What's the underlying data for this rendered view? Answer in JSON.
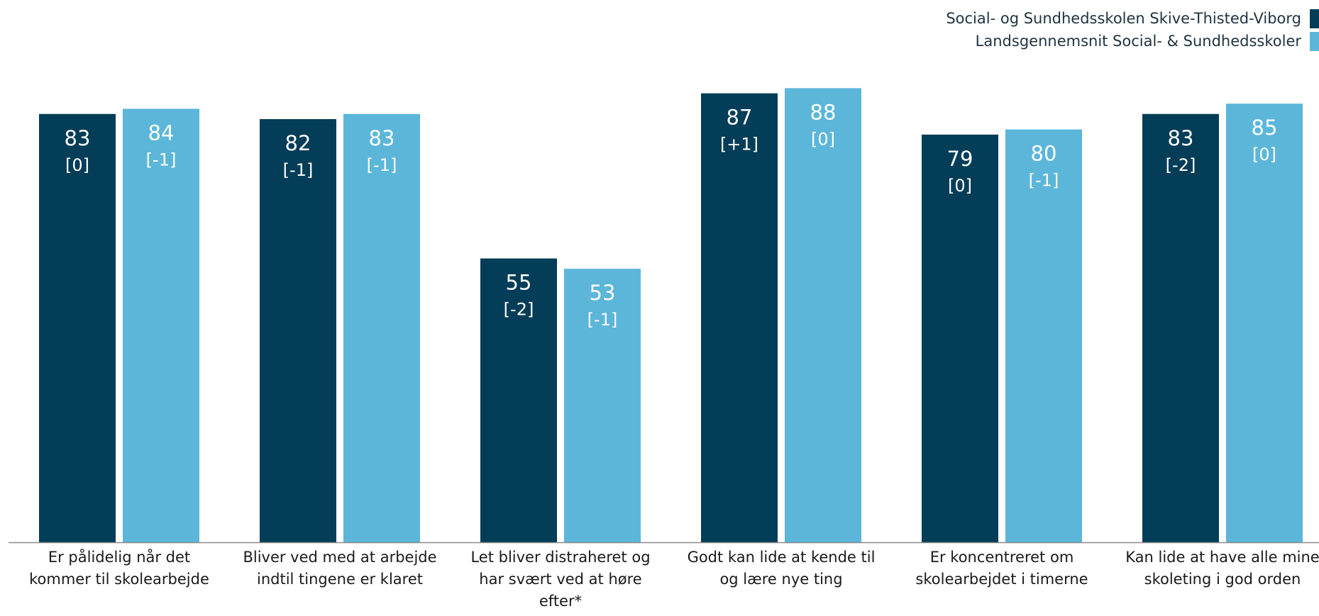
{
  "colors": {
    "school": "#033d57",
    "national": "#5cb6da",
    "axis": "#8a8a8a"
  },
  "chart_data": {
    "type": "bar",
    "categories": [
      "Er pålidelig når det kommer til skolearbejde",
      "Bliver ved med at arbejde indtil tingene er klaret",
      "Let bliver distraheret og har svært ved at høre efter*",
      "Godt kan lide at kende til og lære nye ting",
      "Er koncentreret om skolearbejdet i timerne",
      "Kan lide at have alle mine skoleting i god orden"
    ],
    "series": [
      {
        "name": "Social- og Sundhedsskolen Skive-Thisted-Viborg",
        "values": [
          83,
          82,
          55,
          87,
          79,
          83
        ],
        "changes": [
          "[0]",
          "[-1]",
          "[-2]",
          "[+1]",
          "[0]",
          "[-2]"
        ]
      },
      {
        "name": "Landsgennemsnit Social- & Sundhedsskoler",
        "values": [
          84,
          83,
          53,
          88,
          80,
          85
        ],
        "changes": [
          "[-1]",
          "[-1]",
          "[-1]",
          "[0]",
          "[-1]",
          "[0]"
        ]
      }
    ],
    "ylim": [
      0,
      100
    ],
    "grid": false,
    "legend": "top-right",
    "xlabel": "",
    "ylabel": "",
    "title": ""
  }
}
